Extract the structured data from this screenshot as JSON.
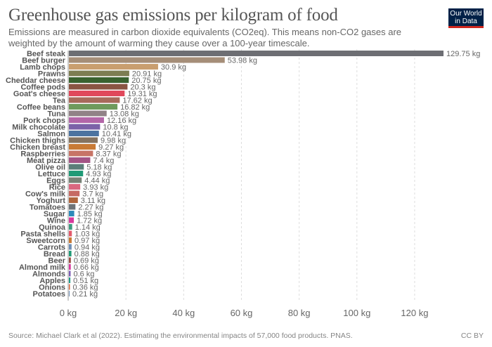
{
  "header": {
    "title": "Greenhouse gas emissions per kilogram of food",
    "subtitle": "Emissions are measured in carbon dioxide equivalents (CO2eq). This means non-CO2 gases are weighted by the amount of warming they cause over a 100-year timescale.",
    "logo_line1": "Our World",
    "logo_line2": "in Data"
  },
  "footer": {
    "source": "Source: Michael Clark et al (2022). Estimating the environmental impacts of 57,000 food products. PNAS.",
    "license": "CC BY"
  },
  "chart_data": {
    "type": "bar",
    "orientation": "horizontal",
    "title": "Greenhouse gas emissions per kilogram of food",
    "xlabel": "",
    "ylabel": "",
    "unit": "kg",
    "xlim": [
      0,
      130
    ],
    "xticks": [
      0,
      20,
      40,
      60,
      80,
      100,
      120
    ],
    "xtick_labels": [
      "0 kg",
      "20 kg",
      "40 kg",
      "60 kg",
      "80 kg",
      "100 kg",
      "120 kg"
    ],
    "grid": "vertical-dashed",
    "categories": [
      "Beef steak",
      "Beef burger",
      "Lamb chops",
      "Prawns",
      "Cheddar cheese",
      "Coffee pods",
      "Goat's cheese",
      "Tea",
      "Coffee beans",
      "Tuna",
      "Pork chops",
      "Milk chocolate",
      "Salmon",
      "Chicken thighs",
      "Chicken breast",
      "Raspberries",
      "Meat pizza",
      "Olive oil",
      "Lettuce",
      "Eggs",
      "Rice",
      "Cow's milk",
      "Yoghurt",
      "Tomatoes",
      "Sugar",
      "Wine",
      "Quinoa",
      "Pasta shells",
      "Sweetcorn",
      "Carrots",
      "Bread",
      "Beer",
      "Almond milk",
      "Almonds",
      "Apples",
      "Onions",
      "Potatoes"
    ],
    "values": [
      129.75,
      53.98,
      30.9,
      20.91,
      20.75,
      20.3,
      19.31,
      17.62,
      16.82,
      13.08,
      12.16,
      10.8,
      10.41,
      9.98,
      9.27,
      8.37,
      7.4,
      5.18,
      4.93,
      4.44,
      3.93,
      3.7,
      3.11,
      2.27,
      1.85,
      1.72,
      1.14,
      1.03,
      0.97,
      0.94,
      0.88,
      0.69,
      0.66,
      0.6,
      0.51,
      0.36,
      0.21
    ],
    "value_labels": [
      "129.75 kg",
      "53.98 kg",
      "30.9 kg",
      "20.91 kg",
      "20.75 kg",
      "20.3 kg",
      "19.31 kg",
      "17.62 kg",
      "16.82 kg",
      "13.08 kg",
      "12.16 kg",
      "10.8 kg",
      "10.41 kg",
      "9.98 kg",
      "9.27 kg",
      "8.37 kg",
      "7.4 kg",
      "5.18 kg",
      "4.93 kg",
      "4.44 kg",
      "3.93 kg",
      "3.7 kg",
      "3.11 kg",
      "2.27 kg",
      "1.85 kg",
      "1.72 kg",
      "1.14 kg",
      "1.03 kg",
      "0.97 kg",
      "0.94 kg",
      "0.88 kg",
      "0.69 kg",
      "0.66 kg",
      "0.6 kg",
      "0.51 kg",
      "0.36 kg",
      "0.21 kg"
    ],
    "colors": [
      "#6d6e73",
      "#a58e78",
      "#c99e6f",
      "#7c7d52",
      "#39622f",
      "#8a5543",
      "#e0485b",
      "#a86a5b",
      "#6f9a5c",
      "#918287",
      "#b366a8",
      "#7c62a8",
      "#4c73a0",
      "#857360",
      "#c87a35",
      "#c77466",
      "#a35485",
      "#5c7e79",
      "#1f9a76",
      "#778276",
      "#d9677f",
      "#c66a63",
      "#b0663d",
      "#6e7478",
      "#2e8aba",
      "#d83a9e",
      "#3e9a7f",
      "#e35a6b",
      "#c87a35",
      "#6d8eb5",
      "#1f9a76",
      "#9a4f44",
      "#d83a9e",
      "#7c5cb5",
      "#1f9a86",
      "#d8643a",
      "#6d8eb5"
    ]
  }
}
